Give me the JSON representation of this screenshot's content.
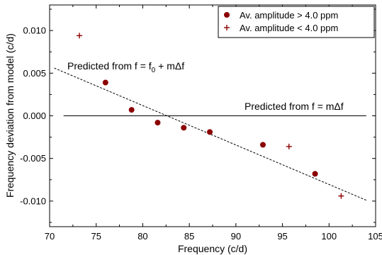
{
  "chart_data": {
    "type": "scatter",
    "xlabel": "Frequency (c/d)",
    "ylabel": "Frequency deviation from model (c/d)",
    "xlim": [
      70,
      105
    ],
    "ylim": [
      -0.013,
      0.013
    ],
    "x_ticks": [
      70,
      75,
      80,
      85,
      90,
      95,
      100,
      105
    ],
    "x_tick_labels": [
      "70",
      "75",
      "80",
      "85",
      "90",
      "95",
      "100",
      "105"
    ],
    "y_ticks": [
      0.01,
      0.005,
      0.0,
      -0.005,
      -0.01
    ],
    "y_tick_labels": [
      "0.010",
      "0.005",
      "0.000",
      "-0.005",
      "-0.010"
    ],
    "grid": false,
    "legend_position": "top-right",
    "series": [
      {
        "name": "Av. amplitude > 4.0 ppm",
        "marker": "circle",
        "color": "#8b0000",
        "points": [
          [
            76.0,
            0.0039
          ],
          [
            78.8,
            0.0007
          ],
          [
            81.6,
            -0.0008
          ],
          [
            84.4,
            -0.0014
          ],
          [
            87.2,
            -0.0019
          ],
          [
            92.9,
            -0.0034
          ],
          [
            98.5,
            -0.0068
          ]
        ]
      },
      {
        "name": "Av. amplitude < 4.0 ppm",
        "marker": "plus",
        "color": "#8b0000",
        "points": [
          [
            73.2,
            0.0094
          ],
          [
            95.7,
            -0.0036
          ],
          [
            101.3,
            -0.0094
          ]
        ]
      }
    ],
    "lines": [
      {
        "label": "Predicted from f = mΔf",
        "style": "solid",
        "x": [
          71.5,
          104
        ],
        "y": [
          0.0,
          0.0
        ]
      },
      {
        "label": "Predicted from f = f₀ + mΔf",
        "style": "dashed",
        "x": [
          70.5,
          104
        ],
        "y": [
          0.0056,
          -0.0099
        ]
      }
    ],
    "annotations": [
      {
        "text": "Predicted from f = f",
        "subscript": "0",
        "text_after": " + mΔf"
      },
      {
        "text": "Predicted from f = mΔf"
      }
    ]
  }
}
